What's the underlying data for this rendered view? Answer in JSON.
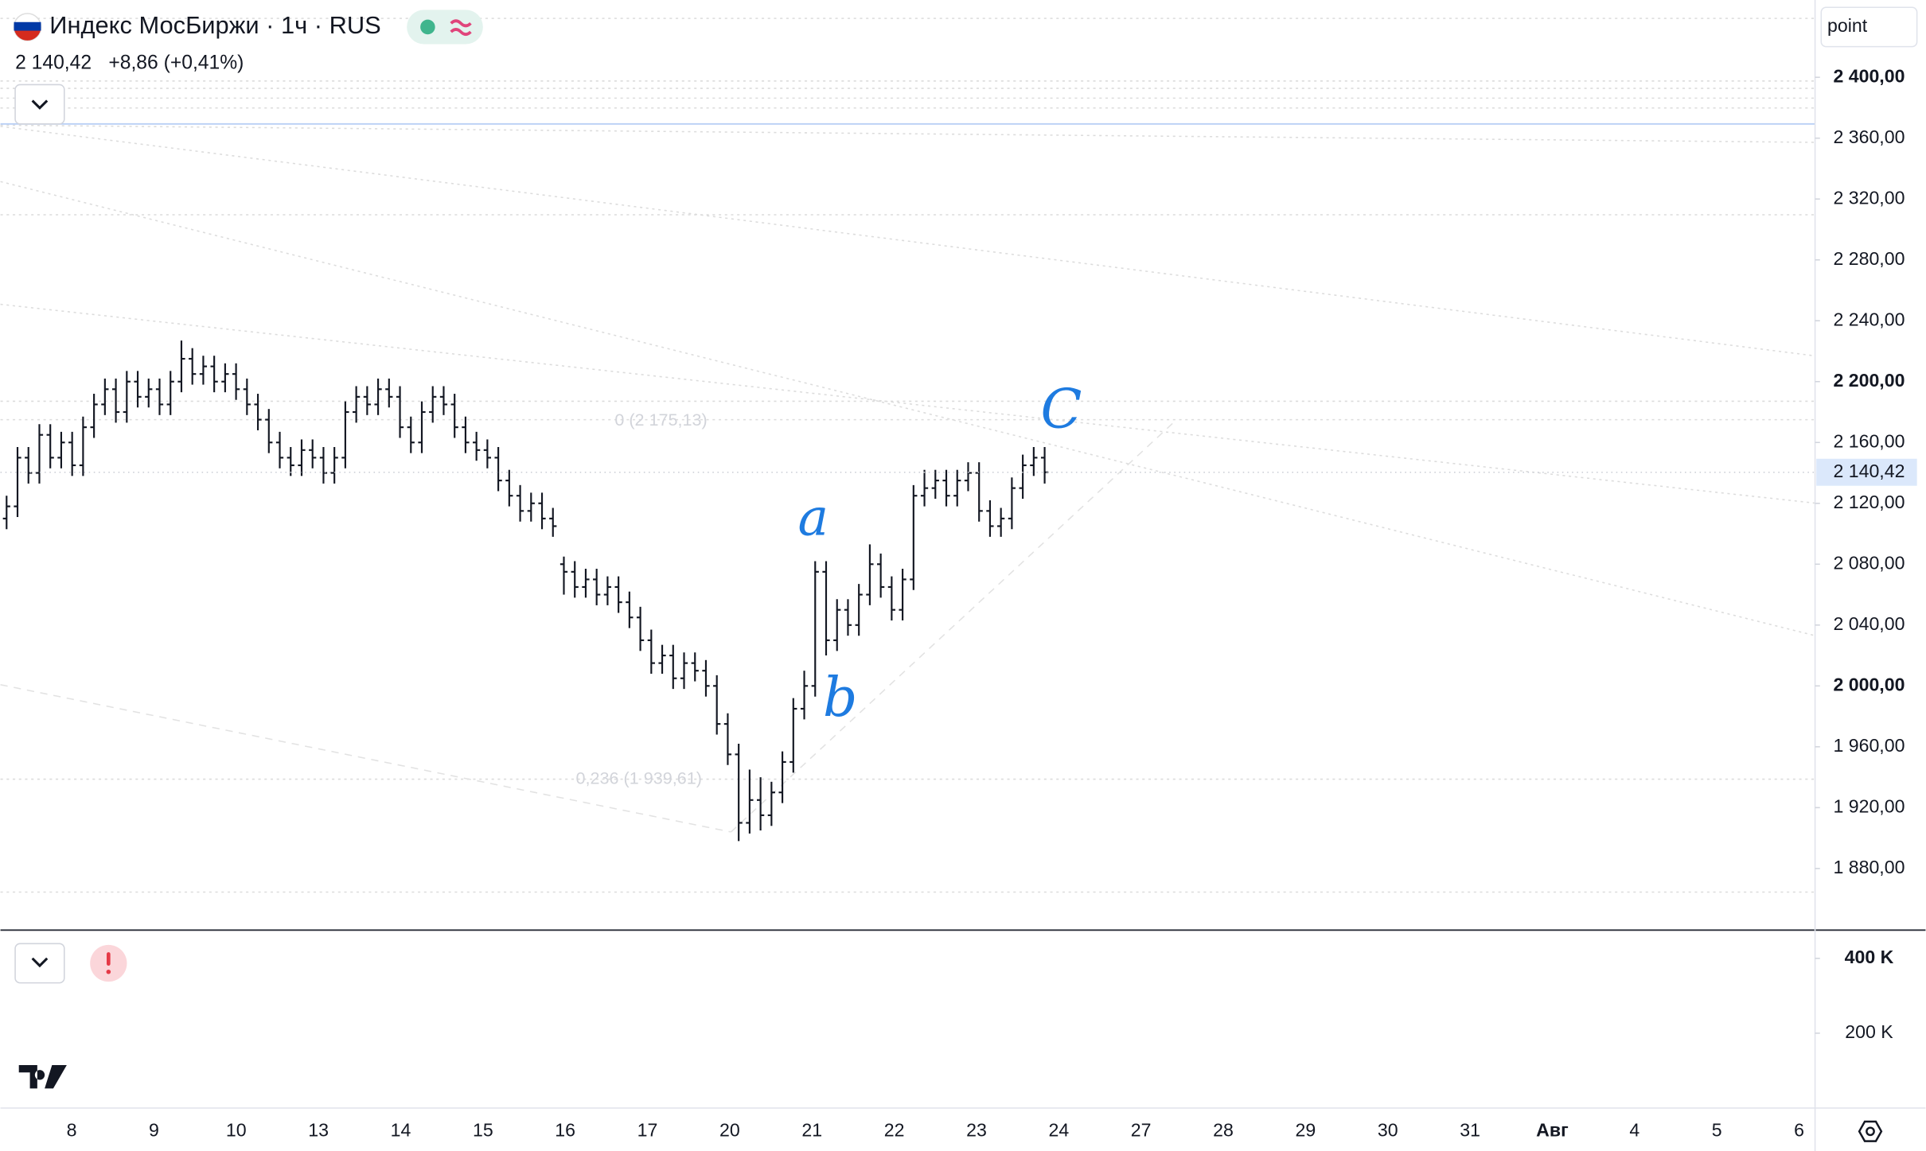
{
  "header": {
    "title": "Индекс МосБиржи · 1ч · RUS",
    "price": "2 140,42",
    "change": "+8,86 (+0,41%)",
    "search": "point"
  },
  "chart_data": {
    "type": "ohlc",
    "color": "#131722",
    "open": [
      2110,
      2118,
      2150,
      2140,
      2165,
      2150,
      2160,
      2145,
      2170,
      2185,
      2195,
      2180,
      2200,
      2190,
      2195,
      2185,
      2200,
      2215,
      2205,
      2210,
      2200,
      2205,
      2195,
      2185,
      2175,
      2160,
      2150,
      2145,
      2155,
      2150,
      2140,
      2150,
      2180,
      2190,
      2185,
      2195,
      2190,
      2170,
      2160,
      2180,
      2190,
      2185,
      2170,
      2160,
      2155,
      2150,
      2135,
      2125,
      2115,
      2120,
      2110,
      2080,
      2075,
      2065,
      2070,
      2060,
      2065,
      2055,
      2045,
      2030,
      2015,
      2020,
      2005,
      2015,
      2010,
      2000,
      1975,
      1955,
      1910,
      1925,
      1915,
      1930,
      1950,
      1985,
      2000,
      2075,
      2030,
      2050,
      2040,
      2060,
      2080,
      2065,
      2050,
      2070,
      2125,
      2130,
      2135,
      2125,
      2135,
      2140,
      2115,
      2105,
      2110,
      2130,
      2145,
      2150
    ],
    "high": [
      2125,
      2157,
      2157,
      2172,
      2172,
      2167,
      2167,
      2177,
      2192,
      2202,
      2202,
      2207,
      2207,
      2202,
      2202,
      2207,
      2227,
      2222,
      2217,
      2217,
      2212,
      2212,
      2202,
      2192,
      2182,
      2167,
      2157,
      2162,
      2162,
      2157,
      2157,
      2187,
      2197,
      2197,
      2202,
      2202,
      2197,
      2177,
      2187,
      2197,
      2197,
      2192,
      2177,
      2167,
      2162,
      2157,
      2142,
      2132,
      2127,
      2127,
      2117,
      2085,
      2082,
      2077,
      2077,
      2072,
      2072,
      2062,
      2052,
      2037,
      2027,
      2027,
      2022,
      2022,
      2017,
      2007,
      1982,
      1962,
      1945,
      1940,
      1937,
      1957,
      1992,
      2010,
      2082,
      2082,
      2057,
      2057,
      2067,
      2093,
      2087,
      2072,
      2077,
      2132,
      2142,
      2142,
      2142,
      2142,
      2147,
      2147,
      2122,
      2117,
      2137,
      2152,
      2157,
      2157
    ],
    "low": [
      2103,
      2111,
      2133,
      2133,
      2143,
      2143,
      2138,
      2138,
      2163,
      2178,
      2173,
      2173,
      2183,
      2183,
      2178,
      2178,
      2193,
      2198,
      2198,
      2193,
      2193,
      2188,
      2178,
      2168,
      2153,
      2143,
      2138,
      2138,
      2143,
      2133,
      2133,
      2143,
      2173,
      2178,
      2178,
      2183,
      2163,
      2153,
      2153,
      2173,
      2178,
      2163,
      2153,
      2148,
      2143,
      2128,
      2118,
      2108,
      2108,
      2103,
      2098,
      2060,
      2058,
      2058,
      2053,
      2053,
      2048,
      2038,
      2023,
      2008,
      2008,
      1998,
      1998,
      2003,
      1993,
      1968,
      1948,
      1898,
      1903,
      1905,
      1908,
      1923,
      1943,
      1978,
      1993,
      2020,
      2023,
      2033,
      2033,
      2053,
      2058,
      2043,
      2043,
      2063,
      2118,
      2123,
      2118,
      2118,
      2128,
      2108,
      2098,
      2098,
      2103,
      2123,
      2138,
      2133
    ],
    "close": [
      2118,
      2150,
      2140,
      2165,
      2150,
      2160,
      2145,
      2170,
      2185,
      2195,
      2180,
      2200,
      2190,
      2195,
      2185,
      2200,
      2215,
      2205,
      2210,
      2200,
      2205,
      2195,
      2185,
      2175,
      2160,
      2150,
      2145,
      2155,
      2150,
      2140,
      2150,
      2180,
      2190,
      2185,
      2195,
      2190,
      2170,
      2160,
      2180,
      2190,
      2185,
      2170,
      2160,
      2155,
      2150,
      2135,
      2125,
      2115,
      2120,
      2110,
      2105,
      2075,
      2065,
      2070,
      2060,
      2065,
      2055,
      2045,
      2030,
      2015,
      2020,
      2005,
      2015,
      2010,
      2000,
      1975,
      1955,
      1910,
      1925,
      1915,
      1930,
      1950,
      1985,
      2000,
      2075,
      2030,
      2050,
      2040,
      2060,
      2080,
      2065,
      2050,
      2070,
      2125,
      2130,
      2135,
      2125,
      2135,
      2140,
      2115,
      2105,
      2110,
      2130,
      2145,
      2150,
      2140.42
    ],
    "ylim": [
      1839.5,
      2450.8
    ],
    "yticks": [
      {
        "value": 1880,
        "label": "1 880,00"
      },
      {
        "value": 1920,
        "label": "1 920,00"
      },
      {
        "value": 1960,
        "label": "1 960,00"
      },
      {
        "value": 2000,
        "label": "2 000,00"
      },
      {
        "value": 2040,
        "label": "2 040,00"
      },
      {
        "value": 2080,
        "label": "2 080,00"
      },
      {
        "value": 2120,
        "label": "2 120,00"
      },
      {
        "value": 2160,
        "label": "2 160,00"
      },
      {
        "value": 2200,
        "label": "2 200,00"
      },
      {
        "value": 2240,
        "label": "2 240,00"
      },
      {
        "value": 2280,
        "label": "2 280,00"
      },
      {
        "value": 2320,
        "label": "2 320,00"
      },
      {
        "value": 2360,
        "label": "2 360,00"
      },
      {
        "value": 2400,
        "label": "2 400,00"
      }
    ],
    "last_price_label": "2 140,42",
    "x_tick_labels": [
      "8",
      "9",
      "10",
      "13",
      "14",
      "15",
      "16",
      "17",
      "20",
      "21",
      "22",
      "23",
      "24",
      "27",
      "28",
      "29",
      "30",
      "31",
      "Авг",
      "4",
      "5",
      "6"
    ],
    "fib_labels": [
      "0 (2 175,13)",
      "0,236 (1 939,61)"
    ],
    "wave_labels": [
      "a",
      "b",
      "C"
    ],
    "volume_yticks": [
      {
        "value": 400000,
        "label": "400 K"
      },
      {
        "value": 200000,
        "label": "200 K"
      }
    ]
  }
}
